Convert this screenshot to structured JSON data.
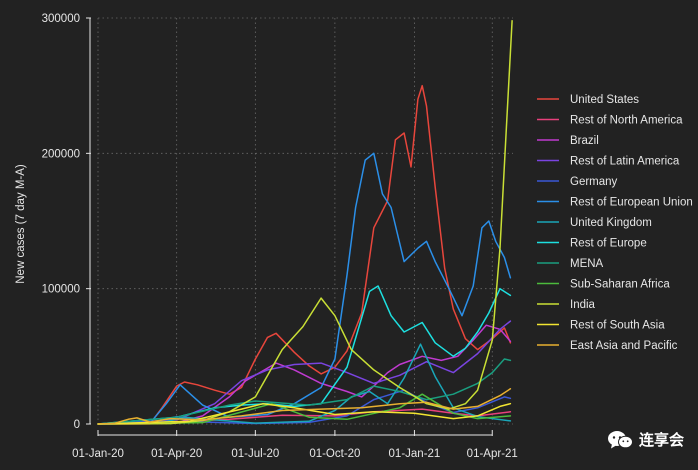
{
  "chart_data": {
    "type": "line",
    "title": "",
    "xlabel": "",
    "ylabel": "New cases (7 day M-A)",
    "ylim": [
      0,
      300000
    ],
    "xlim": [
      "2020-01-01",
      "2021-04-25"
    ],
    "yticks": [
      0,
      100000,
      200000,
      300000
    ],
    "yticklabels": [
      "0",
      "100000",
      "200000",
      "300000"
    ],
    "xticks": [
      "2020-01-01",
      "2020-04-01",
      "2020-07-01",
      "2020-10-01",
      "2021-01-01",
      "2021-04-01"
    ],
    "xticklabels": [
      "01-Jan-20",
      "01-Apr-20",
      "01-Jul-20",
      "01-Oct-20",
      "01-Jan-21",
      "01-Apr-21"
    ],
    "grid": true,
    "legend_position": "right",
    "background": "#222222",
    "series": [
      {
        "name": "United States",
        "color": "#e8463c",
        "x": [
          "2020-01-01",
          "2020-03-01",
          "2020-03-15",
          "2020-04-01",
          "2020-04-10",
          "2020-04-25",
          "2020-05-15",
          "2020-06-01",
          "2020-06-15",
          "2020-07-01",
          "2020-07-15",
          "2020-07-25",
          "2020-08-15",
          "2020-09-01",
          "2020-09-15",
          "2020-10-01",
          "2020-10-15",
          "2020-11-01",
          "2020-11-15",
          "2020-12-01",
          "2020-12-10",
          "2020-12-20",
          "2020-12-28",
          "2021-01-05",
          "2021-01-10",
          "2021-01-15",
          "2021-01-25",
          "2021-02-05",
          "2021-02-15",
          "2021-03-01",
          "2021-03-15",
          "2021-04-01",
          "2021-04-15",
          "2021-04-22"
        ],
        "y": [
          0,
          100,
          12000,
          28000,
          31000,
          29000,
          25000,
          22000,
          27000,
          48000,
          64000,
          67000,
          53000,
          43000,
          37000,
          42000,
          54000,
          82000,
          145000,
          165000,
          210000,
          215000,
          190000,
          240000,
          250000,
          235000,
          175000,
          115000,
          85000,
          63000,
          55000,
          63000,
          71000,
          60000
        ]
      },
      {
        "name": "Rest of North America",
        "color": "#e8407c",
        "x": [
          "2020-01-01",
          "2020-04-01",
          "2020-06-01",
          "2020-08-01",
          "2020-10-01",
          "2020-11-15",
          "2021-01-10",
          "2021-02-15",
          "2021-03-15",
          "2021-04-22"
        ],
        "y": [
          0,
          1500,
          3500,
          6500,
          6000,
          9000,
          11000,
          8000,
          6000,
          9000
        ]
      },
      {
        "name": "Brazil",
        "color": "#c03ad0",
        "x": [
          "2020-01-01",
          "2020-04-01",
          "2020-05-01",
          "2020-06-01",
          "2020-06-20",
          "2020-07-25",
          "2020-08-15",
          "2020-09-15",
          "2020-10-15",
          "2020-11-01",
          "2020-11-15",
          "2020-12-01",
          "2020-12-15",
          "2021-01-10",
          "2021-02-01",
          "2021-02-20",
          "2021-03-10",
          "2021-03-25",
          "2021-04-10",
          "2021-04-22"
        ],
        "y": [
          0,
          1000,
          6000,
          20000,
          32000,
          45000,
          40000,
          30000,
          24000,
          20000,
          28000,
          38000,
          44000,
          50000,
          47000,
          50000,
          62000,
          73000,
          70000,
          61000
        ]
      },
      {
        "name": "Rest of Latin America",
        "color": "#7a44e0",
        "x": [
          "2020-01-01",
          "2020-04-01",
          "2020-05-15",
          "2020-06-15",
          "2020-07-15",
          "2020-08-15",
          "2020-09-15",
          "2020-10-15",
          "2020-11-15",
          "2020-12-15",
          "2021-01-15",
          "2021-02-15",
          "2021-03-15",
          "2021-04-10",
          "2021-04-22"
        ],
        "y": [
          0,
          3000,
          15000,
          32000,
          40000,
          44000,
          45000,
          38000,
          30000,
          36000,
          46000,
          38000,
          52000,
          70000,
          76000
        ]
      },
      {
        "name": "Germany",
        "color": "#3b58d6",
        "x": [
          "2020-01-01",
          "2020-03-15",
          "2020-04-01",
          "2020-05-01",
          "2020-07-01",
          "2020-09-01",
          "2020-10-15",
          "2020-11-15",
          "2020-12-20",
          "2021-01-15",
          "2021-02-15",
          "2021-03-15",
          "2021-04-15",
          "2021-04-22"
        ],
        "y": [
          0,
          2500,
          5500,
          1500,
          400,
          1200,
          6000,
          18000,
          25000,
          16000,
          8500,
          12000,
          20000,
          19000
        ]
      },
      {
        "name": "Rest of European Union",
        "color": "#2b8fe8",
        "x": [
          "2020-01-01",
          "2020-03-01",
          "2020-03-20",
          "2020-04-05",
          "2020-05-01",
          "2020-06-01",
          "2020-07-15",
          "2020-08-15",
          "2020-09-15",
          "2020-10-01",
          "2020-10-15",
          "2020-10-25",
          "2020-11-05",
          "2020-11-15",
          "2020-11-25",
          "2020-12-05",
          "2020-12-20",
          "2021-01-05",
          "2021-01-15",
          "2021-01-25",
          "2021-02-10",
          "2021-02-25",
          "2021-03-10",
          "2021-03-20",
          "2021-03-28",
          "2021-04-05",
          "2021-04-15",
          "2021-04-22"
        ],
        "y": [
          0,
          500,
          15000,
          29000,
          14000,
          5000,
          7000,
          15000,
          27000,
          48000,
          110000,
          160000,
          195000,
          200000,
          170000,
          160000,
          120000,
          130000,
          135000,
          120000,
          100000,
          80000,
          102000,
          145000,
          150000,
          135000,
          123000,
          108000
        ]
      },
      {
        "name": "United Kingdom",
        "color": "#1aa6b8",
        "x": [
          "2020-01-01",
          "2020-03-15",
          "2020-04-10",
          "2020-05-15",
          "2020-07-01",
          "2020-09-01",
          "2020-10-01",
          "2020-10-20",
          "2020-11-10",
          "2020-12-01",
          "2020-12-20",
          "2021-01-08",
          "2021-01-25",
          "2021-02-15",
          "2021-03-15",
          "2021-04-22"
        ],
        "y": [
          0,
          1000,
          5000,
          3000,
          700,
          2000,
          10000,
          20000,
          24000,
          15000,
          34000,
          59000,
          35000,
          12000,
          5500,
          2300
        ]
      },
      {
        "name": "Rest of Europe",
        "color": "#1de0e0",
        "x": [
          "2020-01-01",
          "2020-04-01",
          "2020-05-15",
          "2020-06-15",
          "2020-07-15",
          "2020-08-15",
          "2020-09-15",
          "2020-10-15",
          "2020-11-10",
          "2020-11-20",
          "2020-12-05",
          "2020-12-20",
          "2021-01-10",
          "2021-01-25",
          "2021-02-15",
          "2021-03-01",
          "2021-03-15",
          "2021-03-28",
          "2021-04-10",
          "2021-04-22"
        ],
        "y": [
          0,
          5000,
          12000,
          14000,
          15000,
          13000,
          15000,
          42000,
          98000,
          102000,
          80000,
          68000,
          75000,
          60000,
          50000,
          56000,
          68000,
          82000,
          100000,
          95000
        ]
      },
      {
        "name": "MENA",
        "color": "#1a9e80",
        "x": [
          "2020-01-01",
          "2020-04-01",
          "2020-06-01",
          "2020-07-01",
          "2020-09-01",
          "2020-10-15",
          "2020-11-15",
          "2020-12-15",
          "2021-01-15",
          "2021-02-15",
          "2021-03-15",
          "2021-04-01",
          "2021-04-15",
          "2021-04-22"
        ],
        "y": [
          0,
          5000,
          14000,
          17000,
          14000,
          18000,
          28000,
          24000,
          18000,
          22000,
          30000,
          38000,
          48000,
          47000
        ]
      },
      {
        "name": "Sub-Saharan Africa",
        "color": "#4cbb3c",
        "x": [
          "2020-01-01",
          "2020-05-01",
          "2020-07-20",
          "2020-09-01",
          "2020-10-15",
          "2020-12-15",
          "2021-01-10",
          "2021-02-15",
          "2021-03-15",
          "2021-04-22"
        ],
        "y": [
          0,
          1000,
          15000,
          5000,
          3500,
          12000,
          22000,
          8000,
          4000,
          6000
        ]
      },
      {
        "name": "India",
        "color": "#c9df35",
        "x": [
          "2020-01-01",
          "2020-03-25",
          "2020-05-01",
          "2020-06-01",
          "2020-07-01",
          "2020-08-01",
          "2020-08-25",
          "2020-09-15",
          "2020-10-01",
          "2020-10-20",
          "2020-11-15",
          "2020-12-15",
          "2021-01-15",
          "2021-02-10",
          "2021-03-01",
          "2021-03-15",
          "2021-04-01",
          "2021-04-10",
          "2021-04-17",
          "2021-04-24"
        ],
        "y": [
          0,
          300,
          2500,
          9000,
          20000,
          55000,
          72000,
          93000,
          80000,
          55000,
          40000,
          27000,
          15000,
          11000,
          15000,
          25000,
          62000,
          130000,
          215000,
          298000
        ]
      },
      {
        "name": "Rest of South Asia",
        "color": "#f2e531",
        "x": [
          "2020-01-01",
          "2020-04-15",
          "2020-06-15",
          "2020-07-10",
          "2020-08-15",
          "2020-10-01",
          "2020-11-15",
          "2021-01-01",
          "2021-02-15",
          "2021-03-15",
          "2021-04-10",
          "2021-04-22"
        ],
        "y": [
          0,
          2000,
          11000,
          15000,
          12000,
          7000,
          9000,
          8000,
          4000,
          6000,
          13000,
          15000
        ]
      },
      {
        "name": "East Asia and Pacific",
        "color": "#e8b030",
        "x": [
          "2020-01-01",
          "2020-01-20",
          "2020-02-05",
          "2020-02-15",
          "2020-03-01",
          "2020-03-25",
          "2020-05-01",
          "2020-06-15",
          "2020-08-01",
          "2020-09-15",
          "2020-11-01",
          "2020-12-15",
          "2021-01-15",
          "2021-02-15",
          "2021-03-15",
          "2021-04-10",
          "2021-04-22"
        ],
        "y": [
          0,
          500,
          3500,
          4500,
          1500,
          4000,
          3000,
          6000,
          10000,
          11000,
          12000,
          15000,
          16000,
          11000,
          13000,
          21000,
          26000
        ]
      }
    ]
  },
  "watermark": {
    "icon": "wechat-icon",
    "text": "连享会"
  }
}
